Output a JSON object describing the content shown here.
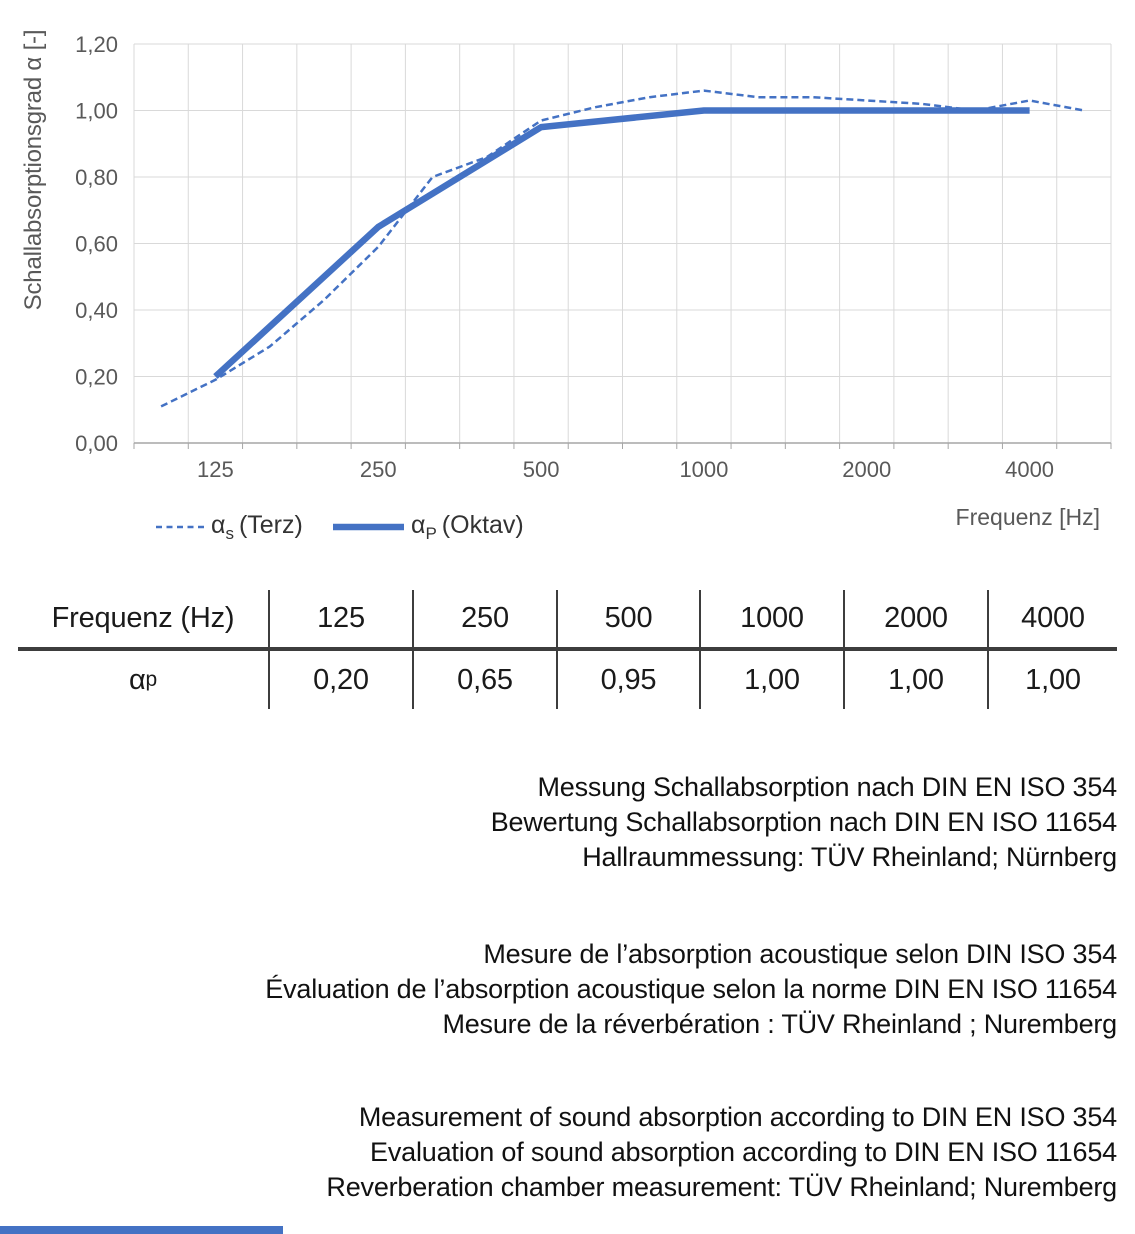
{
  "chart": {
    "y_axis_title": "Schallabsorptionsgrad α [-]",
    "x_axis_title": "Frequenz [Hz]",
    "y_ticks": [
      "0,00",
      "0,20",
      "0,40",
      "0,60",
      "0,80",
      "1,00",
      "1,20"
    ],
    "x_ticks": [
      "125",
      "250",
      "500",
      "1000",
      "2000",
      "4000"
    ],
    "legend": [
      {
        "symbol": "α",
        "sub": "s",
        "rest": "(Terz)",
        "style": "dashed"
      },
      {
        "symbol": "α",
        "sub": "P",
        "rest": "(Oktav)",
        "style": "solid"
      }
    ],
    "colors": {
      "line": "#4472C4",
      "grid": "#D9D9D9",
      "axis": "#A6A6A6",
      "tick_text": "#595959"
    }
  },
  "chart_data": {
    "type": "line",
    "x_scale": "log-categorical-third-octave",
    "x_categories": [
      100,
      125,
      160,
      200,
      250,
      315,
      400,
      500,
      630,
      800,
      1000,
      1250,
      1600,
      2000,
      2500,
      3150,
      4000,
      5000
    ],
    "x_tick_labels": [
      "125",
      "250",
      "500",
      "1000",
      "2000",
      "4000"
    ],
    "series": [
      {
        "name": "αs (Terz)",
        "style": "dashed",
        "values": [
          0.11,
          0.19,
          0.29,
          0.43,
          0.59,
          0.8,
          0.86,
          0.97,
          1.01,
          1.04,
          1.06,
          1.04,
          1.04,
          1.03,
          1.02,
          1.0,
          1.03,
          1.0
        ]
      },
      {
        "name": "αP (Oktav)",
        "style": "solid",
        "x": [
          125,
          250,
          500,
          1000,
          2000,
          4000
        ],
        "values": [
          0.2,
          0.65,
          0.95,
          1.0,
          1.0,
          1.0
        ]
      }
    ],
    "title": "",
    "xlabel": "Frequenz [Hz]",
    "ylabel": "Schallabsorptionsgrad α [-]",
    "ylim": [
      0,
      1.2
    ],
    "grid": true,
    "legend_position": "bottom-left"
  },
  "table": {
    "header": [
      "Frequenz (Hz)",
      "125",
      "250",
      "500",
      "1000",
      "2000",
      "4000"
    ],
    "row_label": {
      "symbol": "α",
      "sub": "p"
    },
    "values": [
      "0,20",
      "0,65",
      "0,95",
      "1,00",
      "1,00",
      "1,00"
    ]
  },
  "notes": {
    "blocks": [
      {
        "lang": "de",
        "lines": [
          "Messung Schallabsorption nach DIN EN ISO 354",
          "Bewertung Schallabsorption nach DIN EN ISO 11654",
          "Hallraummessung: TÜV Rheinland; Nürnberg"
        ]
      },
      {
        "lang": "fr",
        "lines": [
          "Mesure de l’absorption acoustique selon DIN ISO 354",
          "Évaluation de l’absorption acoustique selon la norme DIN EN ISO 11654",
          "Mesure de la réverbération : TÜV Rheinland ; Nuremberg"
        ]
      },
      {
        "lang": "en",
        "lines": [
          "Measurement of sound absorption according to DIN EN ISO 354",
          "Evaluation of sound absorption according to DIN EN ISO 11654",
          "Reverberation chamber measurement: TÜV Rheinland; Nuremberg"
        ]
      }
    ]
  },
  "footer": {
    "bar_color": "#4472C4"
  }
}
